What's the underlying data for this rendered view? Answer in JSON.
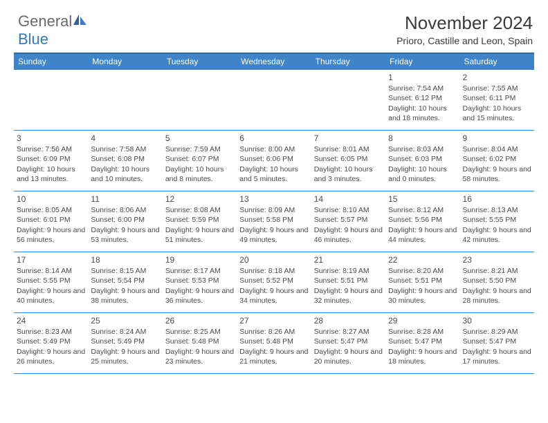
{
  "brand": {
    "text_general": "General",
    "text_blue": "Blue",
    "sail_color_dark": "#2f5e9e",
    "sail_color_light": "#3a7dc4"
  },
  "title": "November 2024",
  "location": "Prioro, Castille and Leon, Spain",
  "colors": {
    "header_bg": "#3e84c6",
    "header_text": "#ffffff",
    "border": "#3e84c6",
    "body_text": "#4a4a4a"
  },
  "weekdays": [
    "Sunday",
    "Monday",
    "Tuesday",
    "Wednesday",
    "Thursday",
    "Friday",
    "Saturday"
  ],
  "weeks": [
    [
      {
        "n": "",
        "lines": []
      },
      {
        "n": "",
        "lines": []
      },
      {
        "n": "",
        "lines": []
      },
      {
        "n": "",
        "lines": []
      },
      {
        "n": "",
        "lines": []
      },
      {
        "n": "1",
        "lines": [
          "Sunrise: 7:54 AM",
          "Sunset: 6:12 PM",
          "Daylight: 10 hours and 18 minutes."
        ]
      },
      {
        "n": "2",
        "lines": [
          "Sunrise: 7:55 AM",
          "Sunset: 6:11 PM",
          "Daylight: 10 hours and 15 minutes."
        ]
      }
    ],
    [
      {
        "n": "3",
        "lines": [
          "Sunrise: 7:56 AM",
          "Sunset: 6:09 PM",
          "Daylight: 10 hours and 13 minutes."
        ]
      },
      {
        "n": "4",
        "lines": [
          "Sunrise: 7:58 AM",
          "Sunset: 6:08 PM",
          "Daylight: 10 hours and 10 minutes."
        ]
      },
      {
        "n": "5",
        "lines": [
          "Sunrise: 7:59 AM",
          "Sunset: 6:07 PM",
          "Daylight: 10 hours and 8 minutes."
        ]
      },
      {
        "n": "6",
        "lines": [
          "Sunrise: 8:00 AM",
          "Sunset: 6:06 PM",
          "Daylight: 10 hours and 5 minutes."
        ]
      },
      {
        "n": "7",
        "lines": [
          "Sunrise: 8:01 AM",
          "Sunset: 6:05 PM",
          "Daylight: 10 hours and 3 minutes."
        ]
      },
      {
        "n": "8",
        "lines": [
          "Sunrise: 8:03 AM",
          "Sunset: 6:03 PM",
          "Daylight: 10 hours and 0 minutes."
        ]
      },
      {
        "n": "9",
        "lines": [
          "Sunrise: 8:04 AM",
          "Sunset: 6:02 PM",
          "Daylight: 9 hours and 58 minutes."
        ]
      }
    ],
    [
      {
        "n": "10",
        "lines": [
          "Sunrise: 8:05 AM",
          "Sunset: 6:01 PM",
          "Daylight: 9 hours and 56 minutes."
        ]
      },
      {
        "n": "11",
        "lines": [
          "Sunrise: 8:06 AM",
          "Sunset: 6:00 PM",
          "Daylight: 9 hours and 53 minutes."
        ]
      },
      {
        "n": "12",
        "lines": [
          "Sunrise: 8:08 AM",
          "Sunset: 5:59 PM",
          "Daylight: 9 hours and 51 minutes."
        ]
      },
      {
        "n": "13",
        "lines": [
          "Sunrise: 8:09 AM",
          "Sunset: 5:58 PM",
          "Daylight: 9 hours and 49 minutes."
        ]
      },
      {
        "n": "14",
        "lines": [
          "Sunrise: 8:10 AM",
          "Sunset: 5:57 PM",
          "Daylight: 9 hours and 46 minutes."
        ]
      },
      {
        "n": "15",
        "lines": [
          "Sunrise: 8:12 AM",
          "Sunset: 5:56 PM",
          "Daylight: 9 hours and 44 minutes."
        ]
      },
      {
        "n": "16",
        "lines": [
          "Sunrise: 8:13 AM",
          "Sunset: 5:55 PM",
          "Daylight: 9 hours and 42 minutes."
        ]
      }
    ],
    [
      {
        "n": "17",
        "lines": [
          "Sunrise: 8:14 AM",
          "Sunset: 5:55 PM",
          "Daylight: 9 hours and 40 minutes."
        ]
      },
      {
        "n": "18",
        "lines": [
          "Sunrise: 8:15 AM",
          "Sunset: 5:54 PM",
          "Daylight: 9 hours and 38 minutes."
        ]
      },
      {
        "n": "19",
        "lines": [
          "Sunrise: 8:17 AM",
          "Sunset: 5:53 PM",
          "Daylight: 9 hours and 36 minutes."
        ]
      },
      {
        "n": "20",
        "lines": [
          "Sunrise: 8:18 AM",
          "Sunset: 5:52 PM",
          "Daylight: 9 hours and 34 minutes."
        ]
      },
      {
        "n": "21",
        "lines": [
          "Sunrise: 8:19 AM",
          "Sunset: 5:51 PM",
          "Daylight: 9 hours and 32 minutes."
        ]
      },
      {
        "n": "22",
        "lines": [
          "Sunrise: 8:20 AM",
          "Sunset: 5:51 PM",
          "Daylight: 9 hours and 30 minutes."
        ]
      },
      {
        "n": "23",
        "lines": [
          "Sunrise: 8:21 AM",
          "Sunset: 5:50 PM",
          "Daylight: 9 hours and 28 minutes."
        ]
      }
    ],
    [
      {
        "n": "24",
        "lines": [
          "Sunrise: 8:23 AM",
          "Sunset: 5:49 PM",
          "Daylight: 9 hours and 26 minutes."
        ]
      },
      {
        "n": "25",
        "lines": [
          "Sunrise: 8:24 AM",
          "Sunset: 5:49 PM",
          "Daylight: 9 hours and 25 minutes."
        ]
      },
      {
        "n": "26",
        "lines": [
          "Sunrise: 8:25 AM",
          "Sunset: 5:48 PM",
          "Daylight: 9 hours and 23 minutes."
        ]
      },
      {
        "n": "27",
        "lines": [
          "Sunrise: 8:26 AM",
          "Sunset: 5:48 PM",
          "Daylight: 9 hours and 21 minutes."
        ]
      },
      {
        "n": "28",
        "lines": [
          "Sunrise: 8:27 AM",
          "Sunset: 5:47 PM",
          "Daylight: 9 hours and 20 minutes."
        ]
      },
      {
        "n": "29",
        "lines": [
          "Sunrise: 8:28 AM",
          "Sunset: 5:47 PM",
          "Daylight: 9 hours and 18 minutes."
        ]
      },
      {
        "n": "30",
        "lines": [
          "Sunrise: 8:29 AM",
          "Sunset: 5:47 PM",
          "Daylight: 9 hours and 17 minutes."
        ]
      }
    ]
  ]
}
